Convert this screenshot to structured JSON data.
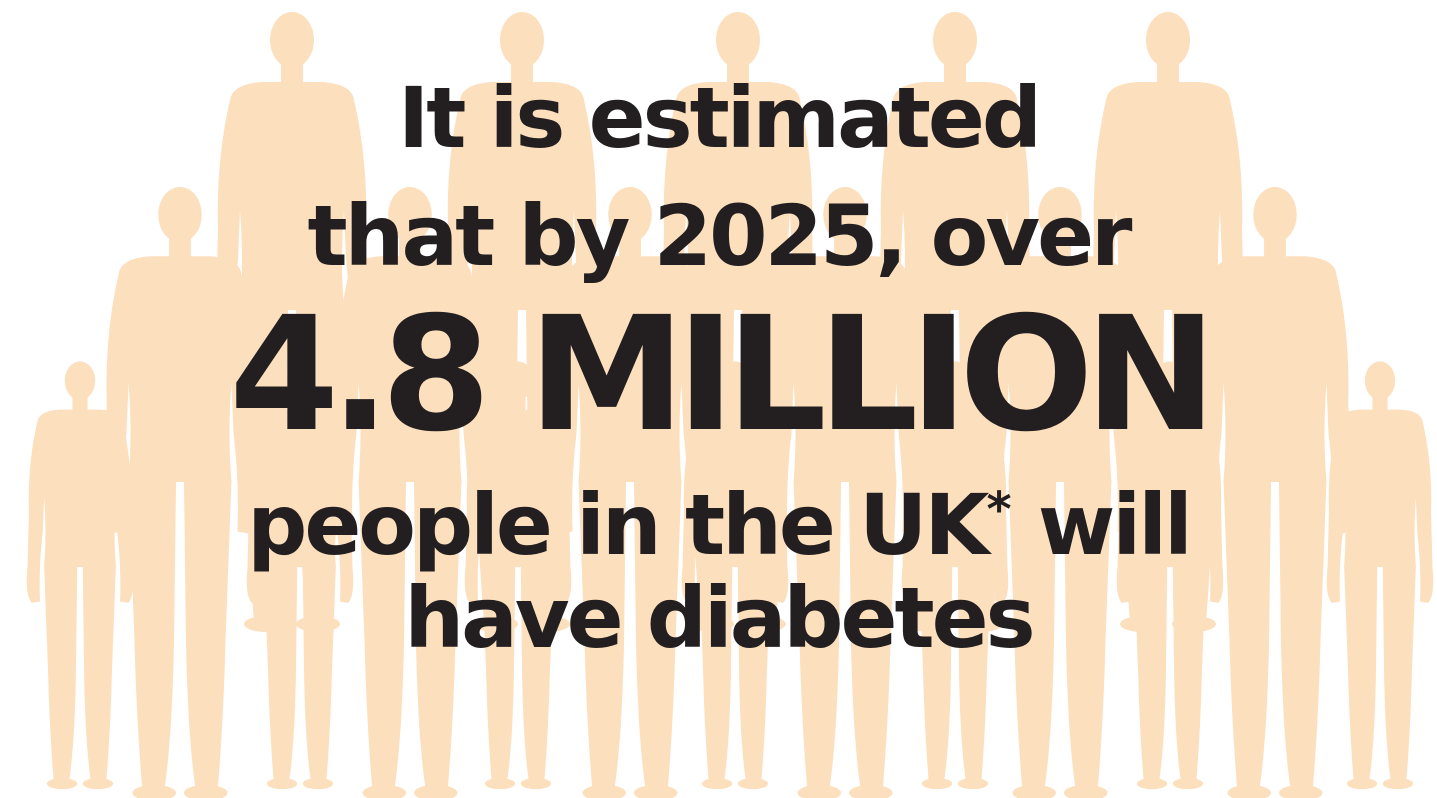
{
  "colors": {
    "figure": "#fcdfbd",
    "text": "#231f20",
    "background": "#ffffff"
  },
  "figure_icon": "human-silhouette-icon",
  "headline": {
    "line1": "It is estimated",
    "line2": "that by 2025, over",
    "line3": "4.8 MILLION",
    "line4_text": "people in the UK",
    "line4_asterisk": "*",
    "line4_end": " will",
    "line5": "have diabetes"
  }
}
